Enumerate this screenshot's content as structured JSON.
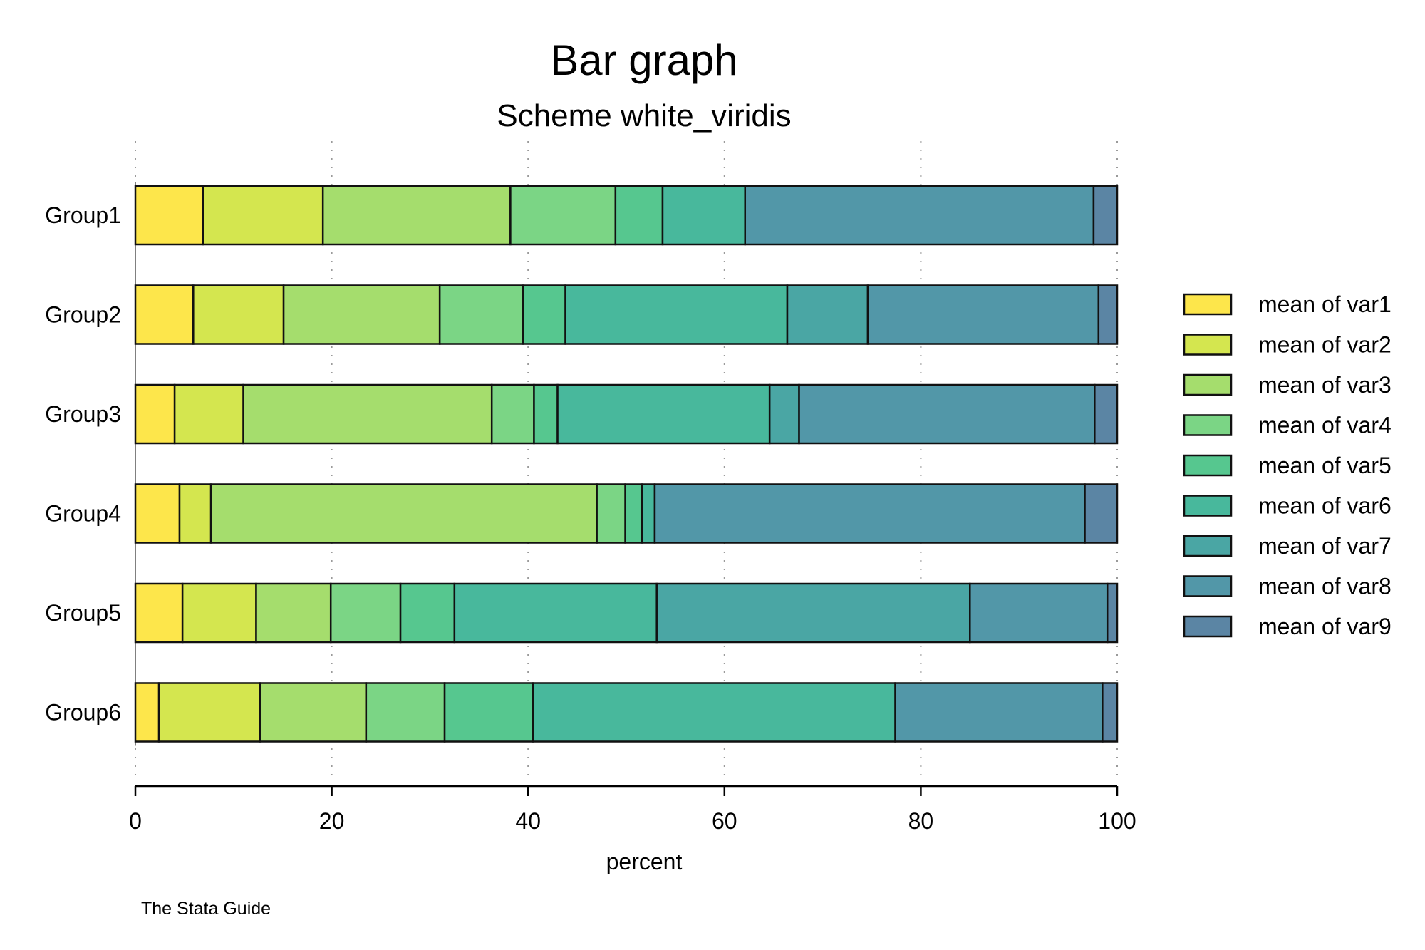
{
  "chart_data": {
    "type": "bar",
    "orientation": "horizontal",
    "stacked": true,
    "percent": true,
    "title": "Bar graph",
    "subtitle": "Scheme white_viridis",
    "xlabel": "percent",
    "ylabel": "",
    "xlim": [
      0,
      100
    ],
    "xticks": [
      "0",
      "20",
      "40",
      "60",
      "80",
      "100"
    ],
    "grid": "vertical dotted",
    "legend": "right",
    "note": "The Stata Guide",
    "categories": [
      "Group1",
      "Group2",
      "Group3",
      "Group4",
      "Group5",
      "Group6"
    ],
    "series": [
      {
        "name": "mean of var1",
        "color": "#fde64b",
        "values": [
          6.9,
          5.9,
          4.0,
          4.5,
          4.8,
          2.4
        ]
      },
      {
        "name": "mean of var2",
        "color": "#d4e64f",
        "values": [
          12.2,
          9.2,
          7.0,
          3.2,
          7.5,
          10.3
        ]
      },
      {
        "name": "mean of var3",
        "color": "#a5dd6d",
        "values": [
          19.1,
          15.9,
          25.3,
          39.3,
          7.6,
          10.8
        ]
      },
      {
        "name": "mean of var4",
        "color": "#7bd585",
        "values": [
          10.7,
          8.5,
          4.3,
          2.9,
          7.1,
          8.0
        ]
      },
      {
        "name": "mean of var5",
        "color": "#56c78f",
        "values": [
          4.8,
          4.3,
          2.4,
          1.7,
          5.5,
          9.0
        ]
      },
      {
        "name": "mean of var6",
        "color": "#48b89c",
        "values": [
          8.4,
          22.6,
          21.6,
          1.3,
          20.6,
          36.9
        ]
      },
      {
        "name": "mean of var7",
        "color": "#4aa6a4",
        "values": [
          0.0,
          8.2,
          3.0,
          0.0,
          31.9,
          0.0
        ]
      },
      {
        "name": "mean of var8",
        "color": "#5297a8",
        "values": [
          35.5,
          23.5,
          30.1,
          43.8,
          14.0,
          21.1
        ]
      },
      {
        "name": "mean of var9",
        "color": "#5b85a4",
        "values": [
          2.4,
          1.9,
          2.3,
          3.3,
          1.0,
          1.5
        ]
      }
    ]
  }
}
